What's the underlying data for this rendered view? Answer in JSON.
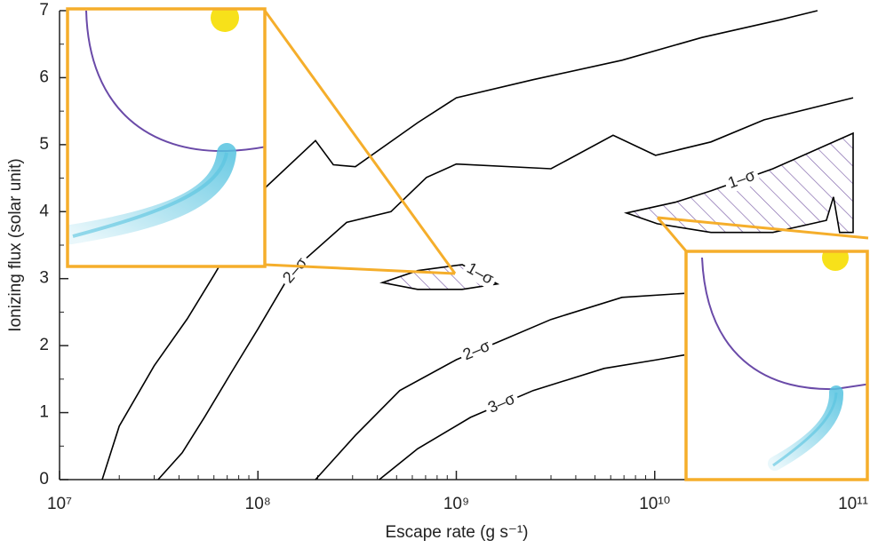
{
  "chart_data": {
    "type": "contour",
    "x_label": "Escape rate (g s⁻¹)",
    "y_label": "Ionizing flux (solar unit)",
    "xscale": "log",
    "xlim": [
      10000000,
      100000000000
    ],
    "xticks": [
      {
        "value": 10000000,
        "label": "10⁷"
      },
      {
        "value": 100000000,
        "label": "10⁸"
      },
      {
        "value": 1000000000,
        "label": "10⁹"
      },
      {
        "value": 10000000000,
        "label": "10¹⁰"
      },
      {
        "value": 100000000000,
        "label": "10¹¹"
      }
    ],
    "ylim": [
      0,
      7
    ],
    "yticks": [
      0,
      1,
      2,
      3,
      4,
      5,
      6,
      7
    ],
    "series": [
      {
        "name": "3–σ",
        "color": "#000000",
        "x": [
          16400000,
          20000000,
          30000000,
          44000000,
          60000000,
          110000000,
          195000000,
          240000000,
          310000000,
          640000000,
          1000000000,
          2440000000,
          6840000000,
          17300000000,
          43800000000,
          66100000000
        ],
        "y": [
          0,
          0.8,
          1.7,
          2.4,
          3.05,
          4.37,
          5.06,
          4.7,
          4.67,
          5.33,
          5.7,
          5.97,
          6.26,
          6.6,
          6.87,
          7.0
        ]
      },
      {
        "name": "2–σ",
        "color": "#000000",
        "x": [
          31400000,
          41500000,
          53700000,
          73100000,
          100000000,
          136000000,
          176000000,
          280000000,
          468000000,
          707000000,
          1000000000,
          3000000000,
          6170000000,
          10100000000,
          19200000000,
          35600000000,
          100000000000
        ],
        "y": [
          0,
          0.4,
          0.93,
          1.59,
          2.25,
          2.92,
          3.31,
          3.84,
          4.0,
          4.51,
          4.71,
          4.64,
          5.14,
          4.84,
          5.04,
          5.37,
          5.7
        ]
      },
      {
        "name": "1–σ",
        "color": "#000000",
        "hatch": "#7b5ea7",
        "closed": true,
        "x": [
          423000000,
          638000000,
          1070000000,
          1610000000,
          1070000000,
          638000000
        ],
        "y": [
          2.94,
          3.12,
          3.21,
          2.92,
          2.84,
          2.84
        ]
      },
      {
        "name": "1–σ",
        "color": "#000000",
        "hatch": "#7b5ea7",
        "closed": true,
        "x": [
          7200000000,
          12700000000,
          19200000000,
          39400000000,
          100000000000,
          100000000000,
          85500000000,
          79600000000,
          73300000000,
          39400000000,
          19200000000,
          10300000000
        ],
        "y": [
          3.98,
          4.14,
          4.31,
          4.64,
          5.17,
          3.69,
          3.69,
          4.22,
          3.87,
          3.69,
          3.69,
          3.82
        ]
      },
      {
        "name": "2–σ",
        "color": "#000000",
        "x": [
          195000000,
          310000000,
          519000000,
          1000000000,
          1610000000,
          3000000000,
          6840000000,
          14100000000
        ],
        "y": [
          0,
          0.66,
          1.33,
          1.79,
          2.05,
          2.39,
          2.72,
          2.78
        ]
      },
      {
        "name": "3–σ",
        "color": "#000000",
        "x": [
          409000000,
          638000000,
          1180000000,
          2440000000,
          5560000000,
          10300000000,
          14100000000
        ],
        "y": [
          0,
          0.46,
          0.93,
          1.33,
          1.66,
          1.79,
          1.86
        ]
      }
    ]
  }
}
